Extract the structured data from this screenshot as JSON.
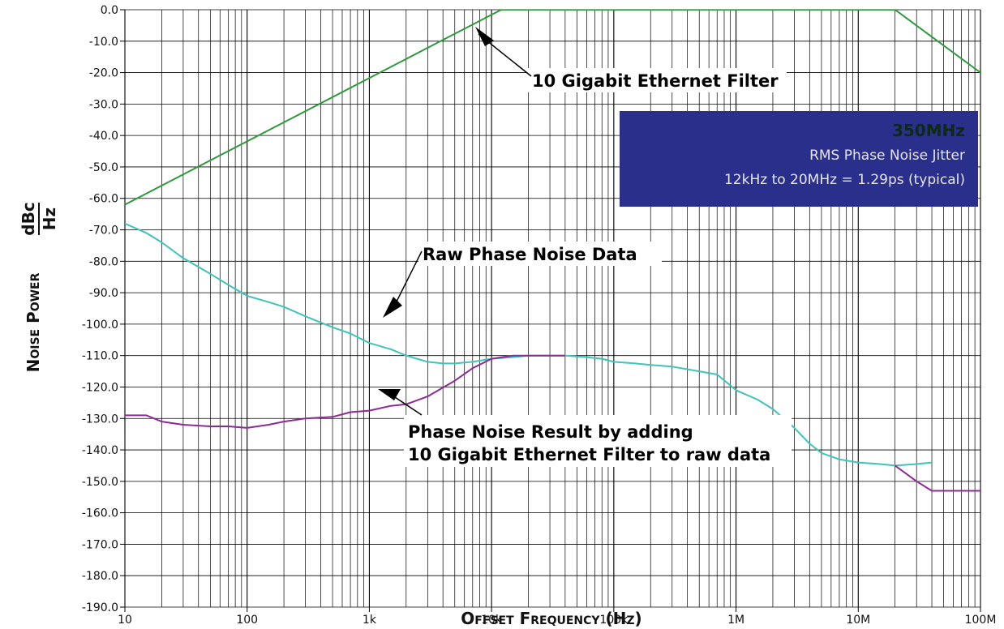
{
  "chart_data": {
    "type": "line",
    "x_scale": "log",
    "xlim": [
      10,
      100000000
    ],
    "ylim": [
      -190,
      0
    ],
    "grid": true,
    "x_ticks": [
      10,
      100,
      1000,
      10000,
      100000,
      1000000,
      10000000,
      100000000
    ],
    "x_tick_labels": [
      "10",
      "100",
      "1k",
      "10k",
      "100k",
      "1M",
      "10M",
      "100M"
    ],
    "y_ticks": [
      0,
      -10,
      -20,
      -30,
      -40,
      -50,
      -60,
      -70,
      -80,
      -90,
      -100,
      -110,
      -120,
      -130,
      -140,
      -150,
      -160,
      -170,
      -180,
      -190
    ],
    "y_tick_labels": [
      "0.0",
      "-10.0",
      "-20.0",
      "-30.0",
      "-40.0",
      "-50.0",
      "-60.0",
      "-70.0",
      "-80.0",
      "-90.0",
      "-100.0",
      "-110.0",
      "-120.0",
      "-130.0",
      "-140.0",
      "-150.0",
      "-160.0",
      "-170.0",
      "-180.0",
      "-190.0"
    ],
    "xlabel": "Offset Frequency (Hz)",
    "ylabel": "Noise Power",
    "ylabel_unit_num": "dBc",
    "ylabel_unit_den": "Hz",
    "series": [
      {
        "color": "#2e9a3c",
        "points": [
          [
            10,
            -62
          ],
          [
            12000,
            0
          ],
          [
            20000000,
            0
          ],
          [
            100000000,
            -20
          ]
        ]
      },
      {
        "color": "#3ec4b8",
        "points": [
          [
            10,
            -68
          ],
          [
            15,
            -71
          ],
          [
            20,
            -74
          ],
          [
            30,
            -79
          ],
          [
            50,
            -84
          ],
          [
            70,
            -87.5
          ],
          [
            100,
            -91
          ],
          [
            150,
            -93
          ],
          [
            200,
            -94.5
          ],
          [
            300,
            -97.5
          ],
          [
            500,
            -101
          ],
          [
            700,
            -103
          ],
          [
            1000,
            -106
          ],
          [
            1500,
            -108
          ],
          [
            2000,
            -110
          ],
          [
            3000,
            -112
          ],
          [
            4000,
            -112.5
          ],
          [
            5000,
            -112.5
          ],
          [
            7000,
            -112
          ],
          [
            10000,
            -111
          ],
          [
            15000,
            -110.5
          ],
          [
            20000,
            -110
          ],
          [
            40000,
            -110
          ],
          [
            60000,
            -110.5
          ],
          [
            80000,
            -111
          ],
          [
            100000,
            -112
          ],
          [
            150000,
            -112.5
          ],
          [
            200000,
            -113
          ],
          [
            300000,
            -113.5
          ],
          [
            500000,
            -115
          ],
          [
            700000,
            -116
          ],
          [
            1000000,
            -121
          ],
          [
            1500000,
            -124
          ],
          [
            2000000,
            -127
          ],
          [
            3000000,
            -133
          ],
          [
            4000000,
            -138
          ],
          [
            5000000,
            -141
          ],
          [
            7000000,
            -143
          ],
          [
            10000000,
            -144
          ],
          [
            15000000,
            -144.5
          ],
          [
            20000000,
            -145
          ],
          [
            30000000,
            -144.5
          ],
          [
            40000000,
            -144
          ]
        ]
      },
      {
        "color": "#8c2a96",
        "points": [
          [
            10,
            -129
          ],
          [
            15,
            -129
          ],
          [
            20,
            -131
          ],
          [
            30,
            -132
          ],
          [
            50,
            -132.5
          ],
          [
            70,
            -132.5
          ],
          [
            100,
            -133
          ],
          [
            150,
            -132
          ],
          [
            200,
            -131
          ],
          [
            300,
            -130
          ],
          [
            500,
            -129.5
          ],
          [
            700,
            -128
          ],
          [
            1000,
            -127.5
          ],
          [
            1500,
            -126
          ],
          [
            2000,
            -125.5
          ],
          [
            3000,
            -123
          ],
          [
            5000,
            -118
          ],
          [
            7000,
            -114
          ],
          [
            10000,
            -111
          ],
          [
            15000,
            -110
          ],
          [
            20000,
            -110
          ],
          [
            40000,
            -110
          ]
        ]
      },
      {
        "color": "#8c2a96",
        "points": [
          [
            20000000,
            -145
          ],
          [
            30000000,
            -150
          ],
          [
            40000000,
            -153
          ],
          [
            70000000,
            -153
          ],
          [
            100000000,
            -153
          ]
        ]
      }
    ],
    "annotations": {
      "filter": "10 Gigabit Ethernet Filter",
      "raw": "Raw Phase Noise Data",
      "result_line1": "Phase Noise Result by adding",
      "result_line2": "10 Gigabit Ethernet Filter to raw data"
    },
    "info_box": {
      "title": "350MHz",
      "line1": "RMS Phase Noise Jitter",
      "line2": "12kHz to 20MHz = 1.29ps (typical)",
      "background": "#2b2f8c"
    }
  }
}
